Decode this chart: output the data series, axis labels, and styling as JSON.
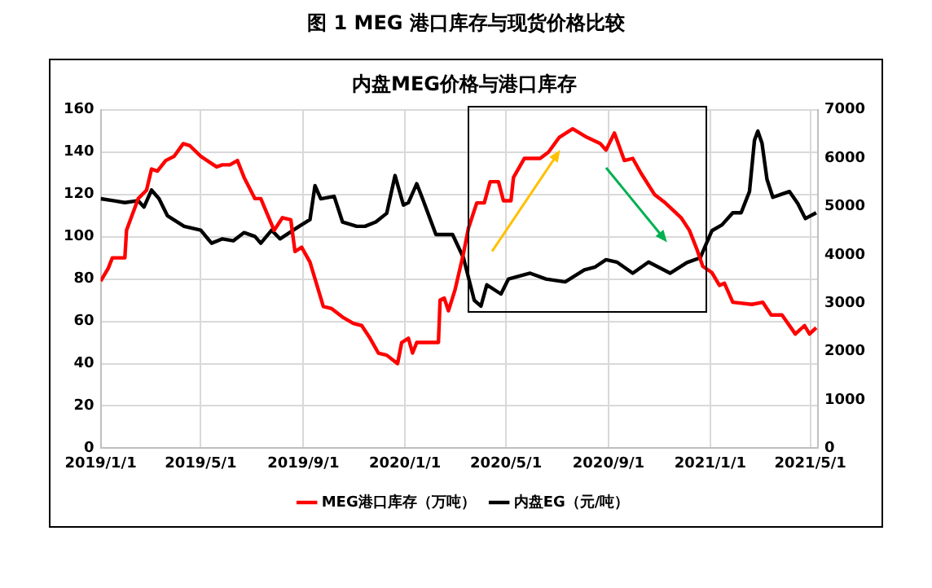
{
  "chart_data": {
    "type": "line",
    "title": "图 1 MEG 港口库存与现货价格比较",
    "subtitle": "内盘MEG价格与港口库存",
    "xlim": [
      "2019-01-01",
      "2021-05-10"
    ],
    "xticks": [
      {
        "value": "2019-01-01",
        "label": "2019/1/1"
      },
      {
        "value": "2019-05-01",
        "label": "2019/5/1"
      },
      {
        "value": "2019-09-01",
        "label": "2019/9/1"
      },
      {
        "value": "2020-01-01",
        "label": "2020/1/1"
      },
      {
        "value": "2020-05-01",
        "label": "2020/5/1"
      },
      {
        "value": "2020-09-01",
        "label": "2020/9/1"
      },
      {
        "value": "2021-01-01",
        "label": "2021/1/1"
      },
      {
        "value": "2021-05-01",
        "label": "2021/5/1"
      }
    ],
    "ylim": [
      0,
      160
    ],
    "yticks": [
      0,
      20,
      40,
      60,
      80,
      100,
      120,
      140,
      160
    ],
    "y2lim": [
      0,
      7000
    ],
    "y2ticks": [
      0,
      1000,
      2000,
      3000,
      4000,
      5000,
      6000,
      7000
    ],
    "grid": true,
    "legend": "bottom",
    "marker": "none",
    "line_style": "solid",
    "series": [
      {
        "name": "MEG港口库存（万吨）",
        "color": "#ff0000",
        "axis": "y",
        "x": [
          "2019-01-01",
          "2019-01-10",
          "2019-01-15",
          "2019-01-30",
          "2019-02-01",
          "2019-02-15",
          "2019-02-25",
          "2019-03-03",
          "2019-03-10",
          "2019-03-20",
          "2019-03-30",
          "2019-04-10",
          "2019-04-18",
          "2019-05-01",
          "2019-05-20",
          "2019-05-27",
          "2019-06-05",
          "2019-06-14",
          "2019-06-22",
          "2019-07-05",
          "2019-07-12",
          "2019-07-28",
          "2019-08-07",
          "2019-08-17",
          "2019-08-22",
          "2019-08-30",
          "2019-09-09",
          "2019-09-25",
          "2019-10-05",
          "2019-10-18",
          "2019-10-31",
          "2019-11-10",
          "2019-11-20",
          "2019-11-30",
          "2019-12-10",
          "2019-12-23",
          "2019-12-28",
          "2020-01-05",
          "2020-01-10",
          "2020-01-15",
          "2020-02-10",
          "2020-02-12",
          "2020-02-17",
          "2020-02-22",
          "2020-03-01",
          "2020-03-11",
          "2020-03-17",
          "2020-03-27",
          "2020-04-05",
          "2020-04-12",
          "2020-04-22",
          "2020-04-28",
          "2020-05-07",
          "2020-05-10",
          "2020-05-23",
          "2020-06-11",
          "2020-06-21",
          "2020-07-04",
          "2020-07-20",
          "2020-08-06",
          "2020-08-22",
          "2020-08-29",
          "2020-09-08",
          "2020-09-20",
          "2020-09-30",
          "2020-10-10",
          "2020-10-26",
          "2020-11-08",
          "2020-11-27",
          "2020-12-07",
          "2020-12-16",
          "2020-12-23",
          "2021-01-03",
          "2021-01-12",
          "2021-01-18",
          "2021-01-28",
          "2021-02-20",
          "2021-03-05",
          "2021-03-15",
          "2021-03-28",
          "2021-04-13",
          "2021-04-24",
          "2021-04-30",
          "2021-05-08"
        ],
        "values": [
          79,
          85,
          90,
          90,
          103,
          118,
          122,
          132,
          131,
          136,
          138,
          144,
          143,
          138,
          133,
          134,
          134,
          136,
          128,
          118,
          118,
          103,
          109,
          108,
          93,
          95,
          88,
          67,
          66,
          62,
          59,
          58,
          52,
          45,
          44,
          40,
          50,
          52,
          45,
          50,
          50,
          70,
          71,
          65,
          75,
          92,
          104,
          116,
          116,
          126,
          126,
          117,
          117,
          128,
          137,
          137,
          140,
          147,
          151,
          147,
          144,
          141,
          149,
          136,
          137,
          130,
          120,
          116,
          109,
          103,
          94,
          86,
          83,
          77,
          78,
          69,
          68,
          69,
          63,
          63,
          54,
          58,
          54,
          57
        ]
      },
      {
        "name": "内盘EG（元/吨）",
        "color": "#000000",
        "axis": "y2",
        "x": [
          "2019-01-01",
          "2019-01-16",
          "2019-01-30",
          "2019-02-15",
          "2019-02-22",
          "2019-03-03",
          "2019-03-12",
          "2019-03-22",
          "2019-04-11",
          "2019-05-01",
          "2019-05-14",
          "2019-05-27",
          "2019-06-09",
          "2019-06-22",
          "2019-07-05",
          "2019-07-12",
          "2019-07-25",
          "2019-08-04",
          "2019-08-27",
          "2019-09-09",
          "2019-09-15",
          "2019-09-22",
          "2019-10-08",
          "2019-10-18",
          "2019-11-04",
          "2019-11-14",
          "2019-11-27",
          "2019-12-10",
          "2019-12-20",
          "2019-12-30",
          "2020-01-05",
          "2020-01-15",
          "2020-01-22",
          "2020-02-07",
          "2020-02-27",
          "2020-03-11",
          "2020-03-24",
          "2020-04-01",
          "2020-04-08",
          "2020-04-25",
          "2020-05-04",
          "2020-05-30",
          "2020-06-18",
          "2020-07-11",
          "2020-08-03",
          "2020-08-16",
          "2020-08-29",
          "2020-09-11",
          "2020-09-30",
          "2020-10-19",
          "2020-11-14",
          "2020-12-04",
          "2020-12-20",
          "2021-01-03",
          "2021-01-15",
          "2021-01-28",
          "2021-02-07",
          "2021-02-17",
          "2021-02-23",
          "2021-02-27",
          "2021-03-04",
          "2021-03-10",
          "2021-03-17",
          "2021-03-27",
          "2021-04-06",
          "2021-04-16",
          "2021-04-25",
          "2021-05-08"
        ],
        "values": [
          5160,
          5120,
          5080,
          5120,
          4990,
          5340,
          5160,
          4810,
          4590,
          4510,
          4240,
          4330,
          4290,
          4460,
          4380,
          4240,
          4510,
          4330,
          4590,
          4730,
          5430,
          5160,
          5210,
          4680,
          4590,
          4590,
          4680,
          4860,
          5640,
          5030,
          5080,
          5470,
          5160,
          4420,
          4420,
          3940,
          3060,
          2940,
          3380,
          3190,
          3500,
          3620,
          3500,
          3440,
          3690,
          3750,
          3900,
          3850,
          3620,
          3850,
          3620,
          3840,
          3940,
          4500,
          4620,
          4870,
          4870,
          5310,
          6370,
          6560,
          6310,
          5560,
          5190,
          5250,
          5310,
          5060,
          4750,
          4870
        ]
      }
    ]
  }
}
